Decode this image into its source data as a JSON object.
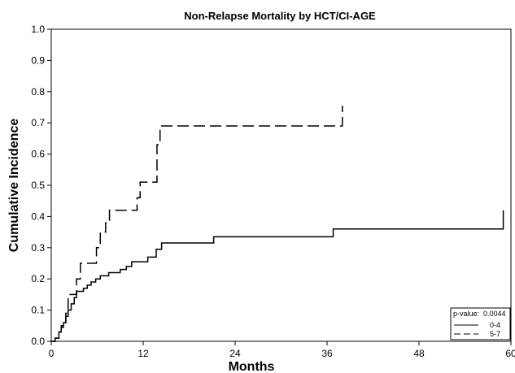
{
  "chart_data": {
    "type": "line",
    "title": "Non-Relapse Mortality by HCT/CI-AGE",
    "xlabel": "Months",
    "ylabel": "Cumulative Incidence",
    "xlim": [
      0,
      60
    ],
    "ylim": [
      0,
      1.0
    ],
    "xticks": [
      0,
      12,
      24,
      36,
      48,
      60
    ],
    "xtick_labels": [
      "0",
      "12",
      "24",
      "36",
      "48",
      "60"
    ],
    "yticks": [
      0.0,
      0.1,
      0.2,
      0.3,
      0.4,
      0.5,
      0.6,
      0.7,
      0.8,
      0.9,
      1.0
    ],
    "ytick_labels": [
      "0.0",
      "0.1",
      "0.2",
      "0.3",
      "0.4",
      "0.5",
      "0.6",
      "0.7",
      "0.8",
      "0.9",
      "1.0"
    ],
    "grid": false,
    "step": true,
    "legend": {
      "placement": "bottom-right",
      "pvalue_label": "p-value:",
      "pvalue": "0.0044"
    },
    "series": [
      {
        "name": "0-4",
        "dash": "solid",
        "x": [
          0,
          0.5,
          1.0,
          1.3,
          1.6,
          1.9,
          2.2,
          2.6,
          3.0,
          3.3,
          3.6,
          4.2,
          4.7,
          5.2,
          5.8,
          6.4,
          7.5,
          8.2,
          9.0,
          9.8,
          10.5,
          12.6,
          13.7,
          14.4,
          15.8,
          21.2,
          36.8,
          59.0
        ],
        "y": [
          0,
          0.01,
          0.03,
          0.05,
          0.06,
          0.08,
          0.1,
          0.12,
          0.14,
          0.16,
          0.16,
          0.17,
          0.18,
          0.19,
          0.2,
          0.21,
          0.22,
          0.22,
          0.23,
          0.24,
          0.255,
          0.27,
          0.295,
          0.315,
          0.315,
          0.335,
          0.36,
          0.42
        ]
      },
      {
        "name": "5-7",
        "dash": "dashed",
        "x": [
          0,
          0.5,
          1.0,
          1.3,
          1.6,
          1.9,
          2.2,
          2.9,
          3.3,
          3.8,
          4.4,
          5.9,
          6.4,
          7.1,
          7.6,
          11.2,
          11.6,
          13.8,
          14.2,
          17.0,
          38.0
        ],
        "y": [
          0,
          0.01,
          0.03,
          0.045,
          0.06,
          0.09,
          0.15,
          0.15,
          0.2,
          0.25,
          0.25,
          0.3,
          0.35,
          0.38,
          0.42,
          0.46,
          0.51,
          0.63,
          0.69,
          0.69,
          0.755
        ]
      }
    ]
  }
}
